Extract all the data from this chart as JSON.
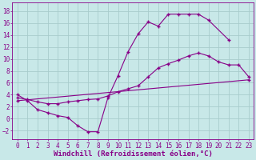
{
  "background_color": "#c8e8e8",
  "grid_color": "#a8cccc",
  "line_color": "#880088",
  "xlim": [
    -0.5,
    23.5
  ],
  "ylim": [
    -3.5,
    19.5
  ],
  "xticks": [
    0,
    1,
    2,
    3,
    4,
    5,
    6,
    7,
    8,
    9,
    10,
    11,
    12,
    13,
    14,
    15,
    16,
    17,
    18,
    19,
    20,
    21,
    22,
    23
  ],
  "yticks": [
    -2,
    0,
    2,
    4,
    6,
    8,
    10,
    12,
    14,
    16,
    18
  ],
  "xlabel": "Windchill (Refroidissement éolien,°C)",
  "curve1_x": [
    0,
    1,
    2,
    3,
    4,
    5,
    6,
    7,
    8,
    9,
    10,
    11,
    12,
    13,
    14,
    15,
    16,
    17,
    18,
    19,
    21
  ],
  "curve1_y": [
    4,
    3,
    1.5,
    1.0,
    0.5,
    0.2,
    -1.2,
    -2.2,
    -2.2,
    3.5,
    7.2,
    11.2,
    14.2,
    16.2,
    15.5,
    17.5,
    17.5,
    17.5,
    17.5,
    16.5,
    13.2
  ],
  "curve2_x": [
    0,
    1,
    2,
    3,
    4,
    5,
    6,
    7,
    8,
    9,
    10,
    11,
    12,
    13,
    14,
    15,
    16,
    17,
    18,
    19,
    20,
    21,
    22,
    23
  ],
  "curve2_y": [
    3.5,
    3.2,
    2.8,
    2.5,
    2.5,
    2.8,
    3.0,
    3.2,
    3.3,
    3.8,
    4.5,
    5.0,
    5.5,
    7.0,
    8.5,
    9.2,
    9.8,
    10.5,
    11.0,
    10.5,
    9.5,
    9.0,
    9.0,
    7.0
  ],
  "curve3_x": [
    0,
    23
  ],
  "curve3_y": [
    3.0,
    6.5
  ],
  "font_family": "monospace",
  "tick_fontsize": 5.5,
  "xlabel_fontsize": 6.5
}
